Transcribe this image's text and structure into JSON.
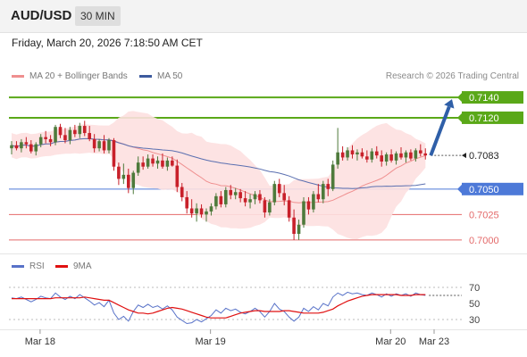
{
  "header": {
    "symbol": "AUD/USD",
    "timeframe": "30 MIN"
  },
  "datetime": "Friday, March 20, 2026 7:18:50 AM CET",
  "legend": {
    "ma20_label": "MA 20 + Bollinger Bands",
    "ma50_label": "MA 50",
    "rsi_label": "RSI",
    "rsi_ma_label": "9MA"
  },
  "credit": "Research © 2026 Trading Central",
  "colors": {
    "green": "#5aa818",
    "blue": "#4d79d8",
    "red": "#e46a6a",
    "ma20": "#ef8f8f",
    "band": "#fde0e0",
    "ma50": "#5a6fb0",
    "arrow": "#2f5fa8",
    "candle_up": "#4e7a3b",
    "candle_down": "#c8202a",
    "rsi": "#5872c8",
    "rsi_ma": "#e01010"
  },
  "chart_data": [
    {
      "type": "candlestick",
      "title": "AUD/USD 30 MIN",
      "ylim": [
        0.6992,
        0.7155
      ],
      "x_tick_labels": [
        "Mar 18",
        "Mar 19",
        "Mar 20",
        "Mar 23"
      ],
      "levels": [
        {
          "value": 0.714,
          "label": "0.7140",
          "style": "resistance",
          "color": "#5aa818"
        },
        {
          "value": 0.712,
          "label": "0.7120",
          "style": "resistance",
          "color": "#5aa818"
        },
        {
          "value": 0.7083,
          "label": "0.7083",
          "style": "last-price",
          "color": "#222222"
        },
        {
          "value": 0.705,
          "label": "0.7050",
          "style": "pivot",
          "color": "#4d79d8"
        },
        {
          "value": 0.7025,
          "label": "0.7025",
          "style": "support",
          "color": "#e46a6a"
        },
        {
          "value": 0.7,
          "label": "0.7000",
          "style": "support",
          "color": "#e46a6a"
        }
      ],
      "forecast_arrow": {
        "from": 0.7083,
        "to": 0.714
      },
      "candles": [
        [
          0.709,
          0.7097,
          0.7084,
          0.7093
        ],
        [
          0.7093,
          0.7097,
          0.7088,
          0.709
        ],
        [
          0.709,
          0.7099,
          0.7086,
          0.7096
        ],
        [
          0.7096,
          0.7101,
          0.709,
          0.7094
        ],
        [
          0.7094,
          0.7098,
          0.7085,
          0.7087
        ],
        [
          0.7087,
          0.7096,
          0.7083,
          0.7094
        ],
        [
          0.7094,
          0.7104,
          0.7091,
          0.7101
        ],
        [
          0.7101,
          0.7107,
          0.7095,
          0.7099
        ],
        [
          0.7099,
          0.7103,
          0.7092,
          0.7096
        ],
        [
          0.7096,
          0.7113,
          0.7093,
          0.7111
        ],
        [
          0.7111,
          0.7114,
          0.71,
          0.7103
        ],
        [
          0.7103,
          0.711,
          0.7095,
          0.7098
        ],
        [
          0.7098,
          0.7111,
          0.7094,
          0.7108
        ],
        [
          0.7108,
          0.7113,
          0.7101,
          0.7104
        ],
        [
          0.7104,
          0.7115,
          0.71,
          0.7112
        ],
        [
          0.7112,
          0.7117,
          0.7102,
          0.7105
        ],
        [
          0.7105,
          0.7112,
          0.7097,
          0.7099
        ],
        [
          0.7099,
          0.7104,
          0.7086,
          0.709
        ],
        [
          0.709,
          0.7099,
          0.7087,
          0.7097
        ],
        [
          0.7097,
          0.7103,
          0.7085,
          0.7088
        ],
        [
          0.7088,
          0.71,
          0.7085,
          0.7098
        ],
        [
          0.7098,
          0.71,
          0.7068,
          0.7072
        ],
        [
          0.7072,
          0.7076,
          0.7054,
          0.706
        ],
        [
          0.706,
          0.7075,
          0.7055,
          0.7064
        ],
        [
          0.7064,
          0.707,
          0.7046,
          0.7051
        ],
        [
          0.7051,
          0.7068,
          0.7045,
          0.7066
        ],
        [
          0.7066,
          0.7082,
          0.7063,
          0.7076
        ],
        [
          0.7076,
          0.7082,
          0.7069,
          0.7072
        ],
        [
          0.7072,
          0.7084,
          0.707,
          0.708
        ],
        [
          0.708,
          0.7084,
          0.7072,
          0.7075
        ],
        [
          0.7075,
          0.7082,
          0.707,
          0.7078
        ],
        [
          0.7078,
          0.7085,
          0.707,
          0.7072
        ],
        [
          0.7072,
          0.7081,
          0.7068,
          0.7078
        ],
        [
          0.7078,
          0.7082,
          0.7072,
          0.7073
        ],
        [
          0.7073,
          0.7079,
          0.7047,
          0.7052
        ],
        [
          0.7052,
          0.7056,
          0.7038,
          0.7042
        ],
        [
          0.7042,
          0.7048,
          0.7026,
          0.7031
        ],
        [
          0.7031,
          0.704,
          0.7022,
          0.7026
        ],
        [
          0.7026,
          0.7036,
          0.7018,
          0.7031
        ],
        [
          0.7031,
          0.7035,
          0.7022,
          0.7025
        ],
        [
          0.7025,
          0.7031,
          0.7018,
          0.7028
        ],
        [
          0.7028,
          0.7036,
          0.7024,
          0.7033
        ],
        [
          0.7033,
          0.7046,
          0.703,
          0.7043
        ],
        [
          0.7043,
          0.7048,
          0.7032,
          0.7035
        ],
        [
          0.7035,
          0.7052,
          0.7032,
          0.7049
        ],
        [
          0.7049,
          0.7054,
          0.704,
          0.7044
        ],
        [
          0.7044,
          0.7051,
          0.704,
          0.7047
        ],
        [
          0.7047,
          0.705,
          0.7037,
          0.7041
        ],
        [
          0.7041,
          0.7048,
          0.7033,
          0.7037
        ],
        [
          0.7037,
          0.7045,
          0.7031,
          0.704
        ],
        [
          0.704,
          0.7048,
          0.7035,
          0.7045
        ],
        [
          0.7045,
          0.7049,
          0.7036,
          0.7039
        ],
        [
          0.7039,
          0.7042,
          0.7022,
          0.7027
        ],
        [
          0.7027,
          0.704,
          0.7024,
          0.7037
        ],
        [
          0.7037,
          0.7058,
          0.7034,
          0.7055
        ],
        [
          0.7055,
          0.706,
          0.7042,
          0.7046
        ],
        [
          0.7046,
          0.7054,
          0.7034,
          0.7039
        ],
        [
          0.7039,
          0.7043,
          0.7018,
          0.7022
        ],
        [
          0.7022,
          0.703,
          0.7,
          0.7006
        ],
        [
          0.7006,
          0.702,
          0.7,
          0.7015
        ],
        [
          0.7015,
          0.7042,
          0.7012,
          0.7038
        ],
        [
          0.7038,
          0.7042,
          0.7025,
          0.703
        ],
        [
          0.703,
          0.7048,
          0.7027,
          0.7045
        ],
        [
          0.7045,
          0.7055,
          0.7037,
          0.704
        ],
        [
          0.704,
          0.7058,
          0.7036,
          0.7055
        ],
        [
          0.7055,
          0.706,
          0.7043,
          0.705
        ],
        [
          0.705,
          0.7078,
          0.7048,
          0.7074
        ],
        [
          0.7074,
          0.711,
          0.707,
          0.7086
        ],
        [
          0.7086,
          0.7092,
          0.7078,
          0.7081
        ],
        [
          0.7081,
          0.7091,
          0.7078,
          0.7088
        ],
        [
          0.7088,
          0.7093,
          0.708,
          0.7084
        ],
        [
          0.7084,
          0.7089,
          0.7078,
          0.7086
        ],
        [
          0.7086,
          0.709,
          0.708,
          0.7082
        ],
        [
          0.7082,
          0.7088,
          0.7076,
          0.7079
        ],
        [
          0.7079,
          0.709,
          0.7076,
          0.7087
        ],
        [
          0.7087,
          0.7092,
          0.708,
          0.7083
        ],
        [
          0.7083,
          0.7088,
          0.7072,
          0.7077
        ],
        [
          0.7077,
          0.7086,
          0.7073,
          0.7084
        ],
        [
          0.7084,
          0.7089,
          0.7076,
          0.7078
        ],
        [
          0.7078,
          0.7087,
          0.7074,
          0.7085
        ],
        [
          0.7085,
          0.7091,
          0.7079,
          0.7081
        ],
        [
          0.7081,
          0.7088,
          0.7076,
          0.7086
        ],
        [
          0.7086,
          0.7089,
          0.7078,
          0.708
        ],
        [
          0.708,
          0.709,
          0.7077,
          0.7088
        ],
        [
          0.7088,
          0.7094,
          0.7082,
          0.7085
        ],
        [
          0.7085,
          0.709,
          0.7079,
          0.7083
        ]
      ]
    },
    {
      "type": "line",
      "title": "",
      "ylim": [
        20,
        80
      ],
      "y_tick_labels": [
        "70",
        "50",
        "30"
      ],
      "y_ticks": [
        70,
        50,
        30
      ],
      "series": [
        {
          "name": "RSI",
          "values": [
            57,
            56,
            58,
            55,
            52,
            55,
            59,
            57,
            56,
            63,
            58,
            55,
            59,
            56,
            61,
            57,
            53,
            48,
            51,
            46,
            54,
            38,
            30,
            34,
            28,
            40,
            48,
            45,
            49,
            45,
            47,
            43,
            47,
            42,
            33,
            29,
            25,
            26,
            30,
            27,
            31,
            35,
            42,
            38,
            44,
            41,
            43,
            39,
            37,
            40,
            44,
            40,
            33,
            40,
            50,
            43,
            40,
            33,
            28,
            33,
            44,
            40,
            46,
            42,
            50,
            47,
            58,
            63,
            60,
            64,
            62,
            63,
            61,
            60,
            63,
            61,
            58,
            62,
            59,
            62,
            60,
            62,
            59,
            63,
            61,
            60
          ]
        },
        {
          "name": "9MA",
          "values": [
            56,
            56,
            56,
            56,
            56,
            56,
            56,
            56,
            56,
            57,
            57,
            57,
            57,
            57,
            57,
            58,
            57,
            56,
            55,
            54,
            54,
            51,
            48,
            45,
            42,
            40,
            38,
            38,
            37,
            38,
            40,
            42,
            44,
            45,
            44,
            43,
            41,
            39,
            37,
            35,
            33,
            32,
            32,
            32,
            32,
            34,
            36,
            38,
            39,
            40,
            41,
            41,
            40,
            40,
            40,
            40,
            41,
            41,
            40,
            39,
            38,
            38,
            38,
            38,
            39,
            41,
            43,
            47,
            50,
            53,
            55,
            57,
            59,
            60,
            61,
            61,
            61,
            61,
            61,
            61,
            60,
            60,
            60,
            61,
            61,
            61
          ]
        }
      ]
    }
  ]
}
